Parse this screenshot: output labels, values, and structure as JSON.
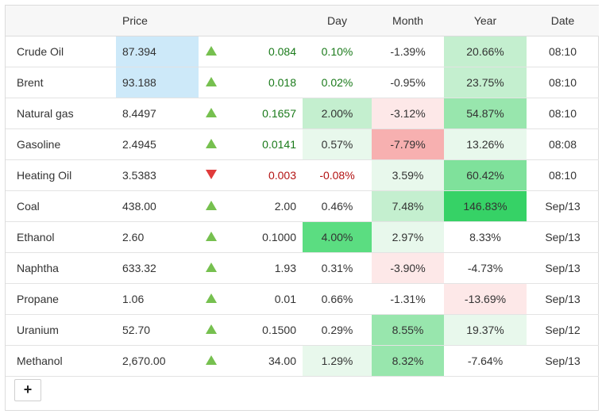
{
  "headers": {
    "price": "Price",
    "day": "Day",
    "month": "Month",
    "year": "Year",
    "date": "Date"
  },
  "add_button_label": "+",
  "colors": {
    "price_highlight": "#cde9f9",
    "pos_light": "#e8f8ec",
    "pos_mid": "#c4efcf",
    "pos_strong": "#98e6ad",
    "pos_stronger": "#7fe19b",
    "pos_strongest": "#36d266",
    "pos_day_strong": "#5bdd81",
    "neg_light": "#fde8e8",
    "neg_strong": "#f7b0b0"
  },
  "rows": [
    {
      "name": "Crude Oil",
      "price": "87.394",
      "direction": "up",
      "change": "0.084",
      "day": "0.10%",
      "month": "-1.39%",
      "year": "20.66%",
      "date": "08:10",
      "price_bg": "price_highlight",
      "day_bg": "",
      "month_bg": "",
      "year_bg": "pos_mid",
      "change_class": "pos",
      "day_class": "pos",
      "month_class": "neutral",
      "year_class": "neutral"
    },
    {
      "name": "Brent",
      "price": "93.188",
      "direction": "up",
      "change": "0.018",
      "day": "0.02%",
      "month": "-0.95%",
      "year": "23.75%",
      "date": "08:10",
      "price_bg": "price_highlight",
      "day_bg": "",
      "month_bg": "",
      "year_bg": "pos_mid",
      "change_class": "pos",
      "day_class": "pos",
      "month_class": "neutral",
      "year_class": "neutral"
    },
    {
      "name": "Natural gas",
      "price": "8.4497",
      "direction": "up",
      "change": "0.1657",
      "day": "2.00%",
      "month": "-3.12%",
      "year": "54.87%",
      "date": "08:10",
      "price_bg": "",
      "day_bg": "pos_mid",
      "month_bg": "neg_light",
      "year_bg": "pos_strong",
      "change_class": "pos",
      "day_class": "neutral",
      "month_class": "neutral",
      "year_class": "neutral"
    },
    {
      "name": "Gasoline",
      "price": "2.4945",
      "direction": "up",
      "change": "0.0141",
      "day": "0.57%",
      "month": "-7.79%",
      "year": "13.26%",
      "date": "08:08",
      "price_bg": "",
      "day_bg": "pos_light",
      "month_bg": "neg_strong",
      "year_bg": "pos_light",
      "change_class": "pos",
      "day_class": "neutral",
      "month_class": "neutral",
      "year_class": "neutral"
    },
    {
      "name": "Heating Oil",
      "price": "3.5383",
      "direction": "down",
      "change": "0.003",
      "day": "-0.08%",
      "month": "3.59%",
      "year": "60.42%",
      "date": "08:10",
      "price_bg": "",
      "day_bg": "",
      "month_bg": "pos_light",
      "year_bg": "pos_stronger",
      "change_class": "neg",
      "day_class": "neg",
      "month_class": "neutral",
      "year_class": "neutral"
    },
    {
      "name": "Coal",
      "price": "438.00",
      "direction": "up",
      "change": "2.00",
      "day": "0.46%",
      "month": "7.48%",
      "year": "146.83%",
      "date": "Sep/13",
      "price_bg": "",
      "day_bg": "",
      "month_bg": "pos_mid",
      "year_bg": "pos_strongest",
      "change_class": "neutral",
      "day_class": "neutral",
      "month_class": "neutral",
      "year_class": "neutral"
    },
    {
      "name": "Ethanol",
      "price": "2.60",
      "direction": "up",
      "change": "0.1000",
      "day": "4.00%",
      "month": "2.97%",
      "year": "8.33%",
      "date": "Sep/13",
      "price_bg": "",
      "day_bg": "pos_day_strong",
      "month_bg": "pos_light",
      "year_bg": "",
      "change_class": "neutral",
      "day_class": "neutral",
      "month_class": "neutral",
      "year_class": "neutral"
    },
    {
      "name": "Naphtha",
      "price": "633.32",
      "direction": "up",
      "change": "1.93",
      "day": "0.31%",
      "month": "-3.90%",
      "year": "-4.73%",
      "date": "Sep/13",
      "price_bg": "",
      "day_bg": "",
      "month_bg": "neg_light",
      "year_bg": "",
      "change_class": "neutral",
      "day_class": "neutral",
      "month_class": "neutral",
      "year_class": "neutral"
    },
    {
      "name": "Propane",
      "price": "1.06",
      "direction": "up",
      "change": "0.01",
      "day": "0.66%",
      "month": "-1.31%",
      "year": "-13.69%",
      "date": "Sep/13",
      "price_bg": "",
      "day_bg": "",
      "month_bg": "",
      "year_bg": "neg_light",
      "change_class": "neutral",
      "day_class": "neutral",
      "month_class": "neutral",
      "year_class": "neutral"
    },
    {
      "name": "Uranium",
      "price": "52.70",
      "direction": "up",
      "change": "0.1500",
      "day": "0.29%",
      "month": "8.55%",
      "year": "19.37%",
      "date": "Sep/12",
      "price_bg": "",
      "day_bg": "",
      "month_bg": "pos_strong",
      "year_bg": "pos_light",
      "change_class": "neutral",
      "day_class": "neutral",
      "month_class": "neutral",
      "year_class": "neutral"
    },
    {
      "name": "Methanol",
      "price": "2,670.00",
      "direction": "up",
      "change": "34.00",
      "day": "1.29%",
      "month": "8.32%",
      "year": "-7.64%",
      "date": "Sep/13",
      "price_bg": "",
      "day_bg": "pos_light",
      "month_bg": "pos_strong",
      "year_bg": "",
      "change_class": "neutral",
      "day_class": "neutral",
      "month_class": "neutral",
      "year_class": "neutral"
    }
  ]
}
